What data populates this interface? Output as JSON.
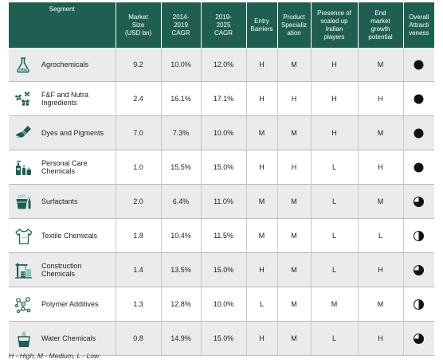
{
  "columns": {
    "segment": "Segment",
    "market_size": "Market\nSize\n(USD bn)",
    "cagr_2014_2019": "2014-\n2019\nCAGR",
    "cagr_2019_2025": "2019-\n2025\nCAGR",
    "entry_barriers": "Entry\nBarriers",
    "product_specialization": "Product\nSpecializ\nation",
    "scaled_indian_players": "Presence of\nscaled up\nIndian\nplayers",
    "end_market_growth": "End\nmarket\ngrowth\npotential",
    "overall_attractiveness": "Overall\nAttracti\nveness"
  },
  "rows": [
    {
      "segment": "Agrochemicals",
      "icon": "flask-icon",
      "market_size": "9.2",
      "cagr_2014_2019": "10.0%",
      "cagr_2019_2025": "12.0%",
      "entry_barriers": "H",
      "product_specialization": "M",
      "scaled_indian_players": "H",
      "end_market_growth": "M",
      "overall_attractiveness": 1.0
    },
    {
      "segment": "F&F and Nutra\nIngredients",
      "icon": "flowers-icon",
      "market_size": "2.4",
      "cagr_2014_2019": "16.1%",
      "cagr_2019_2025": "17.1%",
      "entry_barriers": "H",
      "product_specialization": "H",
      "scaled_indian_players": "H",
      "end_market_growth": "H",
      "overall_attractiveness": 1.0
    },
    {
      "segment": "Dyes and Pigments",
      "icon": "paintbrush-icon",
      "market_size": "7.0",
      "cagr_2014_2019": "7.3%",
      "cagr_2019_2025": "10.0%",
      "entry_barriers": "M",
      "product_specialization": "M",
      "scaled_indian_players": "H",
      "end_market_growth": "M",
      "overall_attractiveness": 1.0
    },
    {
      "segment": "Personal Care\nChemicals",
      "icon": "cosmetics-bottles-icon",
      "market_size": "1.0",
      "cagr_2014_2019": "15.5%",
      "cagr_2019_2025": "15.0%",
      "entry_barriers": "H",
      "product_specialization": "H",
      "scaled_indian_players": "L",
      "end_market_growth": "H",
      "overall_attractiveness": 1.0
    },
    {
      "segment": "Surfactants",
      "icon": "cleaning-bucket-icon",
      "market_size": "2.0",
      "cagr_2014_2019": "6.4%",
      "cagr_2019_2025": "11.0%",
      "entry_barriers": "M",
      "product_specialization": "M",
      "scaled_indian_players": "L",
      "end_market_growth": "M",
      "overall_attractiveness": 0.75
    },
    {
      "segment": "Textile Chemicals",
      "icon": "tshirt-icon",
      "market_size": "1.8",
      "cagr_2014_2019": "10.4%",
      "cagr_2019_2025": "11.5%",
      "entry_barriers": "M",
      "product_specialization": "M",
      "scaled_indian_players": "L",
      "end_market_growth": "L",
      "overall_attractiveness": 0.5
    },
    {
      "segment": "Construction\nChemicals",
      "icon": "construction-crane-icon",
      "market_size": "1.4",
      "cagr_2014_2019": "13.5%",
      "cagr_2019_2025": "15.0%",
      "entry_barriers": "H",
      "product_specialization": "M",
      "scaled_indian_players": "L",
      "end_market_growth": "H",
      "overall_attractiveness": 0.75
    },
    {
      "segment": "Polymer Additives",
      "icon": "molecule-icon",
      "market_size": "1.3",
      "cagr_2014_2019": "12.8%",
      "cagr_2019_2025": "10.0%",
      "entry_barriers": "L",
      "product_specialization": "M",
      "scaled_indian_players": "M",
      "end_market_growth": "M",
      "overall_attractiveness": 0.5
    },
    {
      "segment": "Water Chemicals",
      "icon": "water-glass-icon",
      "market_size": "0.8",
      "cagr_2014_2019": "14.9%",
      "cagr_2019_2025": "15.0%",
      "entry_barriers": "H",
      "product_specialization": "M",
      "scaled_indian_players": "L",
      "end_market_growth": "H",
      "overall_attractiveness": 0.75
    }
  ],
  "footnote": "H - High, M - Medium, L - Low",
  "colors": {
    "header_bg": "#1f5f52",
    "icon_teal": "#1f5f52",
    "icon_accent": "#8fc9bd",
    "row_alt": "#ebebeb"
  }
}
